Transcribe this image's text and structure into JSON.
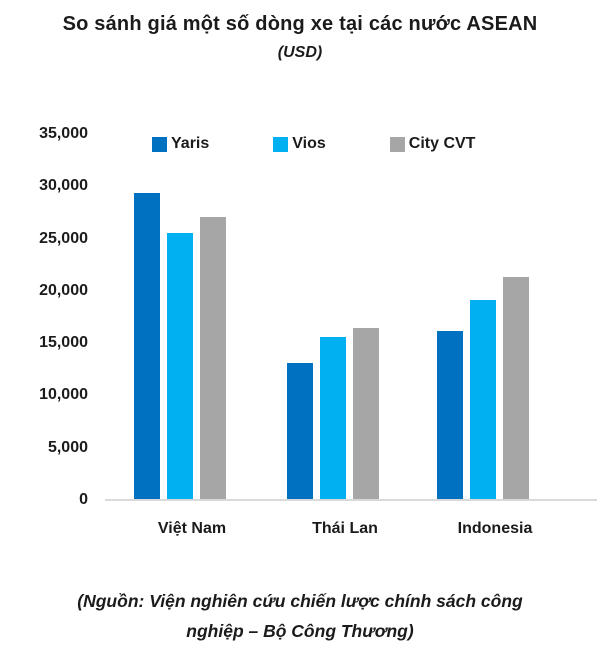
{
  "figure": {
    "title": "So sánh giá một số dòng xe tại các nước ASEAN",
    "subtitle": "(USD)",
    "source_line1": "(Nguồn: Viện nghiên cứu chiến lược chính sách công",
    "source_line2": "nghiệp – Bộ Công Thương)"
  },
  "chart_data": {
    "type": "bar",
    "title": "So sánh giá một số dòng xe tại các nước ASEAN",
    "subtitle": "(USD)",
    "xlabel": "",
    "ylabel": "",
    "categories": [
      "Việt Nam",
      "Thái Lan",
      "Indonesia"
    ],
    "series": [
      {
        "name": "Yaris",
        "color": "#0070C0",
        "values": [
          29300,
          13000,
          16100
        ]
      },
      {
        "name": "Vios",
        "color": "#00B0F0",
        "values": [
          25400,
          15500,
          19000
        ]
      },
      {
        "name": "City CVT",
        "color": "#A6A6A6",
        "values": [
          27000,
          16400,
          21200
        ]
      }
    ],
    "ylim": [
      0,
      35000
    ],
    "ytick_step": 5000,
    "ytick_labels": [
      "0",
      "5,000",
      "10,000",
      "15,000",
      "20,000",
      "25,000",
      "30,000",
      "35,000"
    ],
    "grid": false,
    "legend_position": "top-center",
    "axis_line_color": "#d9d9d9",
    "source": "(Nguồn: Viện nghiên cứu chiến lược chính sách công nghiệp – Bộ Công Thương)"
  }
}
